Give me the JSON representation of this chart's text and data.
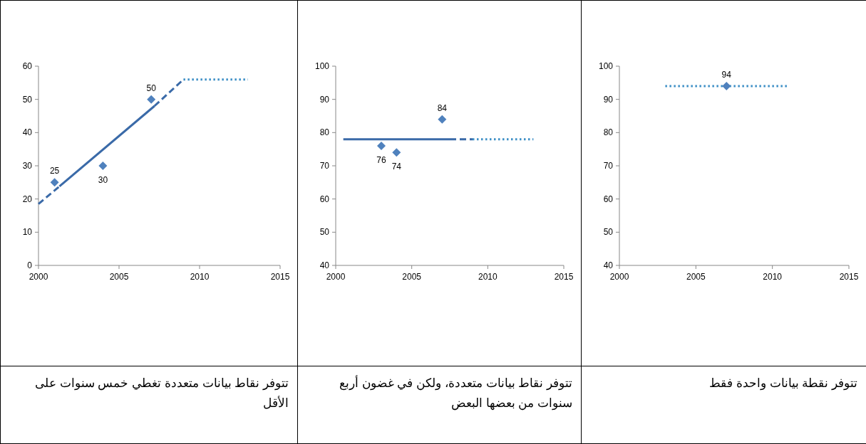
{
  "chart_data": [
    {
      "type": "scatter",
      "xlim": [
        2000,
        2015
      ],
      "xticks": [
        2000,
        2005,
        2010,
        2015
      ],
      "ylim": [
        0,
        60
      ],
      "yticks": [
        0,
        10,
        20,
        30,
        40,
        50,
        60
      ],
      "series": [
        {
          "type": "line",
          "x": [
            2000,
            2001.3
          ],
          "values": [
            18.5,
            23.8
          ],
          "color": "#3a6aa8",
          "line_style": "dashed"
        },
        {
          "type": "line",
          "x": [
            2001.3,
            2007.2
          ],
          "values": [
            23.8,
            48
          ],
          "color": "#3a6aa8",
          "line_style": "solid"
        },
        {
          "type": "line",
          "x": [
            2007.2,
            2009
          ],
          "values": [
            48,
            56
          ],
          "color": "#3a6aa8",
          "line_style": "dashed"
        },
        {
          "type": "line",
          "x": [
            2009,
            2013
          ],
          "values": [
            56,
            56
          ],
          "color": "#3d8fc6",
          "line_style": "dotted"
        },
        {
          "type": "scatter",
          "x": [
            2001,
            2004,
            2007
          ],
          "values": [
            25,
            30,
            50
          ],
          "value_labels": [
            "25",
            "30",
            "50"
          ],
          "color": "#4f81bd",
          "marker": "diamond"
        }
      ],
      "annotations": [
        "تتوفر نقاط بيانات متعددة تغطي خمس سنوات على الأقل"
      ]
    },
    {
      "type": "scatter",
      "xlim": [
        2000,
        2015
      ],
      "xticks": [
        2000,
        2005,
        2010,
        2015
      ],
      "ylim": [
        40,
        100
      ],
      "yticks": [
        40,
        50,
        60,
        70,
        80,
        90,
        100
      ],
      "series": [
        {
          "type": "line",
          "x": [
            2000.5,
            2007.5
          ],
          "values": [
            78,
            78
          ],
          "color": "#3a6aa8",
          "line_style": "solid"
        },
        {
          "type": "line",
          "x": [
            2007.5,
            2009
          ],
          "values": [
            78,
            78
          ],
          "color": "#3a6aa8",
          "line_style": "dashed"
        },
        {
          "type": "line",
          "x": [
            2009,
            2013
          ],
          "values": [
            78,
            78
          ],
          "color": "#3d8fc6",
          "line_style": "dotted"
        },
        {
          "type": "scatter",
          "x": [
            2003,
            2004,
            2007
          ],
          "values": [
            76,
            74,
            84
          ],
          "value_labels": [
            "76",
            "74",
            "84"
          ],
          "color": "#4f81bd",
          "marker": "diamond"
        }
      ],
      "annotations": [
        "تتوفر نقاط بيانات متعددة، ولكن في غضون أربع سنوات من بعضها البعض"
      ]
    },
    {
      "type": "scatter",
      "xlim": [
        2000,
        2015
      ],
      "xticks": [
        2000,
        2005,
        2010,
        2015
      ],
      "ylim": [
        40,
        100
      ],
      "yticks": [
        40,
        50,
        60,
        70,
        80,
        90,
        100
      ],
      "series": [
        {
          "type": "line",
          "x": [
            2003,
            2011
          ],
          "values": [
            94,
            94
          ],
          "color": "#3d8fc6",
          "line_style": "dotted"
        },
        {
          "type": "scatter",
          "x": [
            2007
          ],
          "values": [
            94
          ],
          "value_labels": [
            "94"
          ],
          "color": "#4f81bd",
          "marker": "diamond"
        }
      ],
      "annotations": [
        "تتوفر نقطة بيانات واحدة فقط"
      ]
    }
  ]
}
